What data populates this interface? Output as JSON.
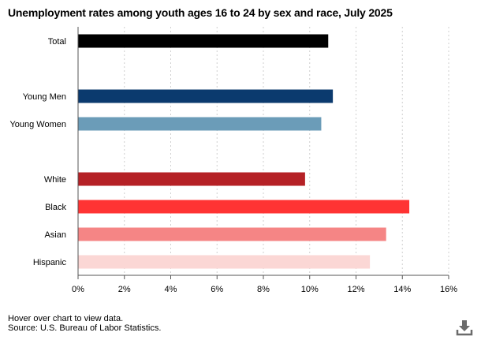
{
  "title": "Unemployment rates among youth ages 16 to 24 by sex and race, July 2025",
  "notes": {
    "hover": "Hover over chart to view data.",
    "source": "Source: U.S. Bureau of Labor Statistics."
  },
  "download_icon": "download-icon",
  "chart_data": {
    "type": "bar",
    "orientation": "horizontal",
    "categories": [
      "Total",
      "Young Men",
      "Young Women",
      "White",
      "Black",
      "Asian",
      "Hispanic"
    ],
    "values": [
      10.8,
      11.0,
      10.5,
      9.8,
      14.3,
      13.3,
      12.6
    ],
    "colors": [
      "#000000",
      "#0b3a6e",
      "#6b9cb8",
      "#b52126",
      "#ff3333",
      "#f58585",
      "#fbd7d5"
    ],
    "groups": [
      [
        0
      ],
      [
        1,
        2
      ],
      [
        3,
        4,
        5,
        6
      ]
    ],
    "xlim": [
      0,
      16
    ],
    "xticks": [
      "0%",
      "2%",
      "4%",
      "6%",
      "8%",
      "10%",
      "12%",
      "14%",
      "16%"
    ],
    "grid": true
  }
}
